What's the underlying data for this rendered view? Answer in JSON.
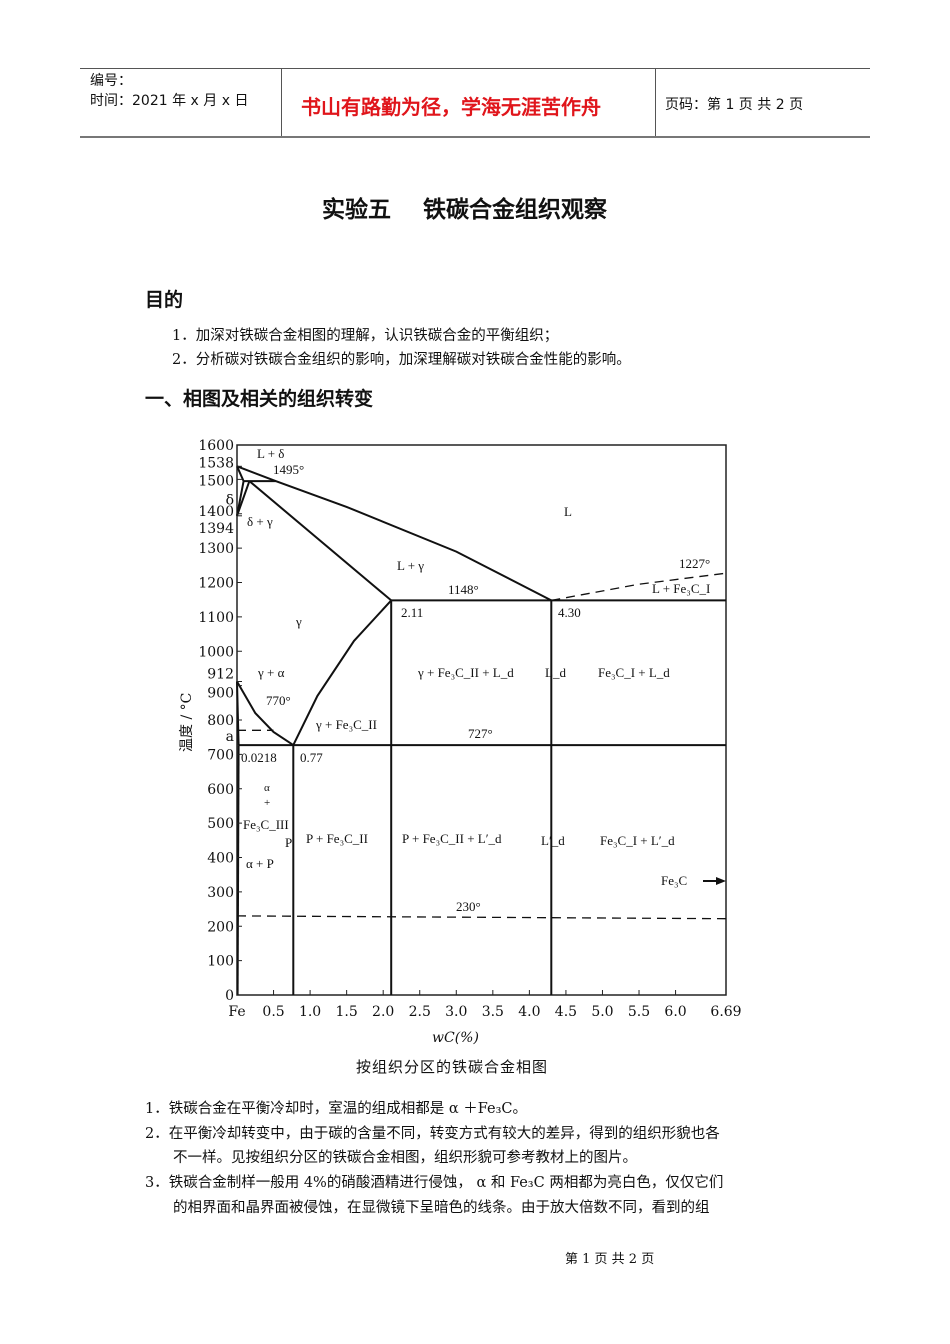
{
  "header": {
    "number_label": "编号：",
    "time_label": "时间：2021 年 x 月 x 日",
    "motto": "书山有路勤为径，学海无涯苦作舟",
    "page_info": "页码：第 1 页  共 2 页"
  },
  "document": {
    "title": "实验五    铁碳合金组织观察",
    "section_purpose": "目的",
    "purpose_items": [
      "1．加深对铁碳合金相图的理解，认识铁碳合金的平衡组织；",
      "2．分析碳对铁碳合金组织的影响，加深理解碳对铁碳合金性能的影响。"
    ],
    "section_one": "一、相图及相关的组织转变",
    "notes": [
      "1．铁碳合金在平衡冷却时，室温的组成相都是 α ＋Fe₃C。",
      "2．在平衡冷却转变中，由于碳的含量不同，转变方式有较大的差异，得到的组织形貌也各",
      "不一样。见按组织分区的铁碳合金相图，组织形貌可参考教材上的图片。",
      "3．铁碳合金制样一般用 4%的硝酸酒精进行侵蚀， α 和 Fe₃C 两相都为亮白色，仅仅它们",
      "的相界面和晶界面被侵蚀，在显微镜下呈暗色的线条。由于放大倍数不同，看到的组"
    ],
    "footer": "第 1 页 共 2 页"
  },
  "figure": {
    "caption": "按组织分区的铁碳合金相图",
    "ylabel": "温度 / °C",
    "xlabel": "wC(%)",
    "y_ticks": [
      {
        "v": 1600,
        "t": "1600"
      },
      {
        "v": 1538,
        "t": "1538"
      },
      {
        "v": 1500,
        "t": "1500"
      },
      {
        "v": 1450,
        "t": "δ"
      },
      {
        "v": 1400,
        "t": "1400"
      },
      {
        "v": 1394,
        "t": "1394"
      },
      {
        "v": 1300,
        "t": "1300"
      },
      {
        "v": 1200,
        "t": "1200"
      },
      {
        "v": 1100,
        "t": "1100"
      },
      {
        "v": 1000,
        "t": "1000"
      },
      {
        "v": 912,
        "t": "912"
      },
      {
        "v": 900,
        "t": "900"
      },
      {
        "v": 800,
        "t": "800"
      },
      {
        "v": 750,
        "t": "a"
      },
      {
        "v": 700,
        "t": "700"
      },
      {
        "v": 600,
        "t": "600"
      },
      {
        "v": 500,
        "t": "500"
      },
      {
        "v": 400,
        "t": "400"
      },
      {
        "v": 300,
        "t": "300"
      },
      {
        "v": 200,
        "t": "200"
      },
      {
        "v": 100,
        "t": "100"
      },
      {
        "v": 0,
        "t": "0"
      }
    ],
    "x_ticks": [
      {
        "v": 0,
        "t": "Fe"
      },
      {
        "v": 0.5,
        "t": "0.5"
      },
      {
        "v": 1.0,
        "t": "1.0"
      },
      {
        "v": 1.5,
        "t": "1.5"
      },
      {
        "v": 2.0,
        "t": "2.0"
      },
      {
        "v": 2.5,
        "t": "2.5"
      },
      {
        "v": 3.0,
        "t": "3.0"
      },
      {
        "v": 3.5,
        "t": "3.5"
      },
      {
        "v": 4.0,
        "t": "4.0"
      },
      {
        "v": 4.5,
        "t": "4.5"
      },
      {
        "v": 5.0,
        "t": "5.0"
      },
      {
        "v": 5.5,
        "t": "5.5"
      },
      {
        "v": 6.0,
        "t": "6.0"
      },
      {
        "v": 6.69,
        "t": "6.69"
      }
    ],
    "xlim": [
      0,
      6.69
    ],
    "ylim": [
      0,
      1600
    ],
    "lines": [
      {
        "name": "liquidus",
        "dash": false,
        "pts": [
          [
            0,
            1538
          ],
          [
            0.53,
            1495
          ],
          [
            1.5,
            1420
          ],
          [
            3.0,
            1290
          ],
          [
            4.3,
            1148
          ]
        ]
      },
      {
        "name": "peritectic",
        "dash": false,
        "pts": [
          [
            0.09,
            1495
          ],
          [
            0.53,
            1495
          ]
        ]
      },
      {
        "name": "solidus-je",
        "dash": false,
        "pts": [
          [
            0.17,
            1495
          ],
          [
            2.11,
            1148
          ]
        ]
      },
      {
        "name": "delta-1",
        "dash": false,
        "pts": [
          [
            0,
            1538
          ],
          [
            0.09,
            1495
          ],
          [
            0,
            1394
          ]
        ]
      },
      {
        "name": "delta-2",
        "dash": false,
        "pts": [
          [
            0.17,
            1495
          ],
          [
            0,
            1394
          ]
        ]
      },
      {
        "name": "eutectic",
        "dash": false,
        "pts": [
          [
            2.11,
            1148
          ],
          [
            6.69,
            1148
          ]
        ]
      },
      {
        "name": "gs",
        "dash": false,
        "pts": [
          [
            0,
            912
          ],
          [
            0.25,
            820
          ],
          [
            0.5,
            765
          ],
          [
            0.77,
            727
          ]
        ]
      },
      {
        "name": "gp",
        "dash": false,
        "pts": [
          [
            0,
            912
          ],
          [
            0.0218,
            727
          ]
        ]
      },
      {
        "name": "es",
        "dash": false,
        "pts": [
          [
            2.11,
            1148
          ],
          [
            1.6,
            1030
          ],
          [
            1.1,
            870
          ],
          [
            0.77,
            727
          ]
        ]
      },
      {
        "name": "eutectoid",
        "dash": false,
        "pts": [
          [
            0.0218,
            727
          ],
          [
            6.69,
            727
          ]
        ]
      },
      {
        "name": "pq",
        "dash": false,
        "pts": [
          [
            0.0218,
            727
          ],
          [
            0.008,
            0
          ]
        ]
      },
      {
        "name": "v077",
        "dash": false,
        "pts": [
          [
            0.77,
            727
          ],
          [
            0.77,
            0
          ]
        ]
      },
      {
        "name": "v211",
        "dash": false,
        "pts": [
          [
            2.11,
            1148
          ],
          [
            2.11,
            0
          ]
        ]
      },
      {
        "name": "v430",
        "dash": false,
        "pts": [
          [
            4.3,
            1148
          ],
          [
            4.3,
            0
          ]
        ]
      },
      {
        "name": "magnetic-770",
        "dash": true,
        "pts": [
          [
            0,
            770
          ],
          [
            0.5,
            770
          ]
        ]
      },
      {
        "name": "fe3c-1227",
        "dash": true,
        "pts": [
          [
            4.3,
            1148
          ],
          [
            5.5,
            1195
          ],
          [
            6.69,
            1227
          ]
        ]
      },
      {
        "name": "line-230",
        "dash": true,
        "pts": [
          [
            0,
            230
          ],
          [
            6.69,
            222
          ]
        ]
      }
    ],
    "labels": {
      "l_delta": "L + δ",
      "t1495": "1495°",
      "delta_gamma": "δ + γ",
      "L": "L",
      "l_gamma": "L + γ",
      "t1148": "1148°",
      "t1227": "1227°",
      "l_fe3c1": "L + Fe₃C_I",
      "c211": "2.11",
      "c430": "4.30",
      "gamma": "γ",
      "gamma_alpha": "γ + α",
      "t770": "770°",
      "gamma_fe3c2": "γ + Fe₃C_II",
      "gamma_fe3c2_ld": "γ + Fe₃C_II + L_d",
      "ld": "L_d",
      "fe3c1_ld": "Fe₃C_I + L_d",
      "t727": "727°",
      "c0218": "0.0218",
      "c077": "0.77",
      "alpha": "α",
      "plus": "+",
      "fe3c3": "Fe₃C_III",
      "P": "P",
      "alpha_p": "α + P",
      "p_fe3c2": "P + Fe₃C_II",
      "p_fe3c2_ld2": "P + Fe₃C_II + L′_d",
      "ld2": "L′_d",
      "fe3c1_ld2": "Fe₃C_I + L′_d",
      "fe3c": "Fe₃C",
      "t230": "230°"
    }
  }
}
